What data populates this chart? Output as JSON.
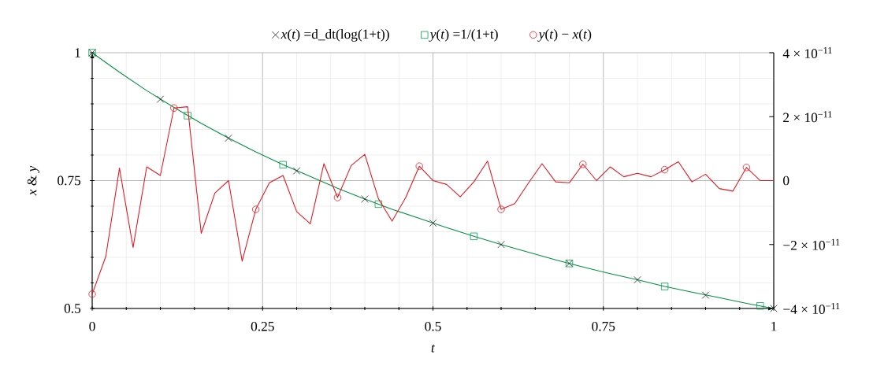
{
  "chart_data": {
    "type": "line",
    "xlabel": "*t*",
    "ylabel": "*x* & *y*",
    "xlim": [
      0,
      1
    ],
    "ylim": [
      0.5,
      1
    ],
    "y2lim": [
      -4e-11,
      4e-11
    ],
    "xticks": [
      0,
      0.25,
      0.5,
      0.75,
      1
    ],
    "yticks": [
      0.5,
      0.75,
      1
    ],
    "y2ticks": [
      {
        "value": -4e-11,
        "label": "−4 × 10$^{−11}$"
      },
      {
        "value": -2e-11,
        "label": "−2 × 10$^{−11}$"
      },
      0,
      {
        "value": 2e-11,
        "label": "2 × 10$^{−11}$"
      },
      {
        "value": 4e-11,
        "label": "4 × 10$^{−11}$"
      }
    ],
    "grid": true,
    "legend": "top",
    "series": [
      {
        "type": "line",
        "color": "#009040",
        "marker": "none",
        "x": [
          0,
          0.04,
          0.08,
          0.12,
          0.16,
          0.2,
          0.24,
          0.28,
          0.32,
          0.36,
          0.4,
          0.44,
          0.48,
          0.52,
          0.56,
          0.6,
          0.64,
          0.68,
          0.72,
          0.76,
          0.8,
          0.84,
          0.88,
          0.92,
          0.96,
          1
        ],
        "values": [
          1,
          0.962,
          0.926,
          0.893,
          0.862,
          0.833,
          0.806,
          0.781,
          0.758,
          0.735,
          0.714,
          0.694,
          0.676,
          0.658,
          0.641,
          0.625,
          0.61,
          0.595,
          0.581,
          0.568,
          0.556,
          0.543,
          0.532,
          0.521,
          0.51,
          0.5
        ]
      },
      {
        "type": "scatter",
        "name": "*x*(*t*) =d_dt(log(1+t))",
        "color": "#202020",
        "marker": "cross",
        "x": [
          0,
          0.1,
          0.2,
          0.3,
          0.4,
          0.5,
          0.6,
          0.7,
          0.8,
          0.9,
          1
        ],
        "values": [
          1,
          0.909,
          0.833,
          0.769,
          0.714,
          0.667,
          0.625,
          0.588,
          0.556,
          0.526,
          0.5
        ]
      },
      {
        "type": "scatter",
        "name": "*y*(*t*) =1/(1+t)",
        "color": "#00a050",
        "marker": "square",
        "x": [
          0,
          0.14,
          0.28,
          0.42,
          0.56,
          0.7,
          0.84,
          0.98
        ],
        "values": [
          1,
          0.877,
          0.781,
          0.704,
          0.641,
          0.588,
          0.543,
          0.505
        ]
      },
      {
        "type": "line",
        "axis": "y2",
        "color": "#e8141e",
        "marker": "none",
        "x": [
          0,
          0.02,
          0.04,
          0.06,
          0.08,
          0.1,
          0.12,
          0.14,
          0.16,
          0.18,
          0.2,
          0.22,
          0.24,
          0.26,
          0.28,
          0.3,
          0.32,
          0.34,
          0.36,
          0.38,
          0.4,
          0.42,
          0.44,
          0.46,
          0.48,
          0.5,
          0.52,
          0.54,
          0.56,
          0.58,
          0.6,
          0.62,
          0.64,
          0.66,
          0.68,
          0.7,
          0.72,
          0.74,
          0.76,
          0.78,
          0.8,
          0.82,
          0.84,
          0.86,
          0.88,
          0.9,
          0.92,
          0.94,
          0.96,
          0.98,
          1
        ],
        "values": [
          -3.55e-11,
          -2.37e-11,
          3.9e-12,
          -2.09e-11,
          4.3e-12,
          1.6e-12,
          2.27e-11,
          2.31e-11,
          -1.65e-11,
          -3.9e-12,
          0,
          -2.52e-11,
          -9e-12,
          -7e-13,
          1.6e-12,
          -9.7e-12,
          -1.35e-11,
          5.3e-12,
          -5.3e-12,
          4.7e-12,
          8.2e-12,
          -5.7e-12,
          -1.27e-11,
          -5.3e-12,
          4.5e-12,
          0,
          -1.2e-12,
          -5.1e-12,
          -4e-13,
          6.1e-12,
          -9e-12,
          -7.2e-12,
          -8e-13,
          5.3e-12,
          -4e-13,
          -7e-13,
          5.1e-12,
          0,
          4.3e-12,
          1.2e-12,
          2.3e-12,
          1.2e-12,
          3.4e-12,
          5.9e-12,
          -4e-13,
          2e-12,
          -2.5e-12,
          -3.3e-12,
          4.1e-12,
          0,
          0
        ]
      },
      {
        "type": "scatter",
        "axis": "y2",
        "name": "*y*(*t*) − *x*(*t*)",
        "color": "#e8141e",
        "marker": "circle",
        "x": [
          0,
          0.12,
          0.24,
          0.36,
          0.48,
          0.6,
          0.72,
          0.84,
          0.96
        ],
        "values": [
          -3.55e-11,
          2.27e-11,
          -9e-12,
          -5.3e-12,
          4.5e-12,
          -9e-12,
          5.1e-12,
          3.4e-12,
          4.1e-12
        ]
      }
    ]
  }
}
